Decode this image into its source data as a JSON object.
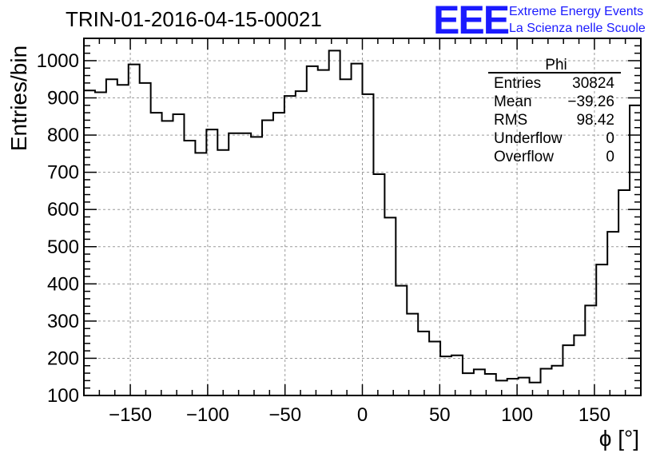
{
  "logo": {
    "letters": "EEE",
    "line1": "Extreme Energy Events",
    "line2": "La Scienza nelle Scuole"
  },
  "stats": {
    "name": "Phi",
    "rows": [
      {
        "label": "Entries",
        "value": "30824"
      },
      {
        "label": "Mean",
        "value": "−39.26"
      },
      {
        "label": "RMS",
        "value": "98.42"
      },
      {
        "label": "Underflow",
        "value": "0"
      },
      {
        "label": "Overflow",
        "value": "0"
      }
    ]
  },
  "chart_data": {
    "type": "histogram",
    "title": "TRIN-01-2016-04-15-00021",
    "xlabel": "ϕ [°]",
    "ylabel": "Entries/bin",
    "xlim": [
      -180,
      180
    ],
    "ylim": [
      100,
      1060
    ],
    "grid": true,
    "bin_edges_start": -180,
    "bin_width": 7.2,
    "values": [
      920,
      915,
      950,
      935,
      990,
      940,
      860,
      838,
      856,
      785,
      752,
      815,
      760,
      805,
      805,
      795,
      840,
      860,
      905,
      918,
      985,
      975,
      1027,
      950,
      992,
      910,
      695,
      578,
      395,
      320,
      272,
      245,
      205,
      208,
      160,
      170,
      158,
      140,
      145,
      148,
      135,
      172,
      180,
      235,
      262,
      342,
      452,
      540,
      652,
      880
    ],
    "xticks": [
      -150,
      -100,
      -50,
      0,
      50,
      100,
      150
    ],
    "xtick_labels": [
      "−150",
      "−100",
      "−50",
      "0",
      "50",
      "100",
      "150"
    ],
    "yticks": [
      100,
      200,
      300,
      400,
      500,
      600,
      700,
      800,
      900,
      1000
    ],
    "ytick_labels": [
      "100",
      "200",
      "300",
      "400",
      "500",
      "600",
      "700",
      "800",
      "900",
      "1000"
    ]
  }
}
